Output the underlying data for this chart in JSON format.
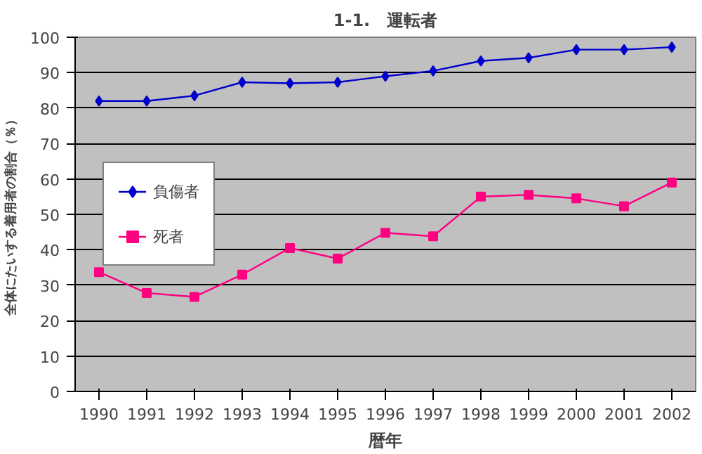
{
  "chart_data": {
    "type": "line",
    "title": "1-1.　運転者",
    "xlabel": "暦年",
    "ylabel": "全体にたいする着用者の割合（％）",
    "categories": [
      "1990",
      "1991",
      "1992",
      "1993",
      "1994",
      "1995",
      "1996",
      "1997",
      "1998",
      "1999",
      "2000",
      "2001",
      "2002"
    ],
    "series": [
      {
        "name": "負傷者",
        "color": "#0000cc",
        "marker": "diamond",
        "values": [
          82,
          82,
          83.5,
          87.3,
          87,
          87.3,
          89,
          90.5,
          93.3,
          94.2,
          96.5,
          96.5,
          97.2
        ]
      },
      {
        "name": "死者",
        "color": "#ff0080",
        "marker": "square",
        "values": [
          33.7,
          27.8,
          26.7,
          33,
          40.5,
          37.5,
          44.8,
          43.8,
          55,
          55.5,
          54.5,
          52.3,
          59
        ]
      }
    ],
    "ylim": [
      0,
      100
    ],
    "yticks": [
      0,
      10,
      20,
      30,
      40,
      50,
      60,
      70,
      80,
      90,
      100
    ],
    "grid": "y",
    "legend": "left"
  }
}
